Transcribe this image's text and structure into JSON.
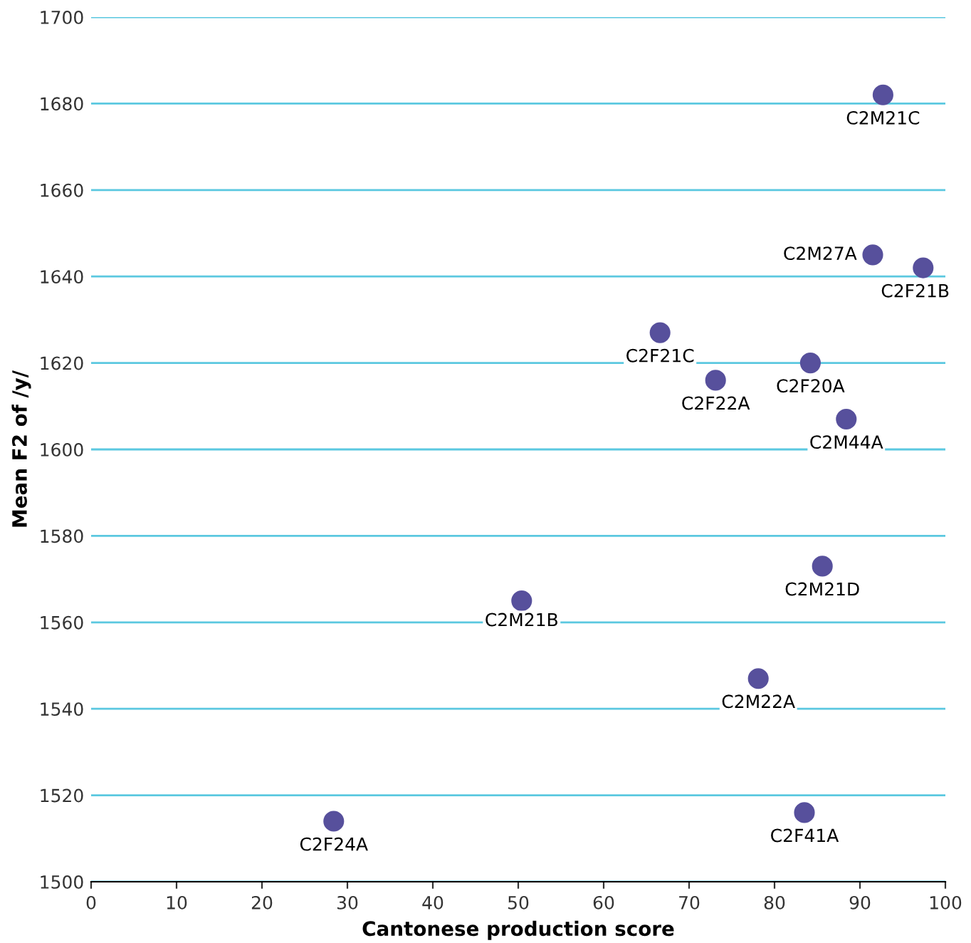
{
  "chart_data": {
    "type": "scatter",
    "xlabel": "Cantonese production score",
    "ylabel": "Mean F2 of /y/",
    "x": [
      92.7,
      91.5,
      97.4,
      66.6,
      84.2,
      73.1,
      88.4,
      85.6,
      50.4,
      78.1,
      28.4,
      83.5
    ],
    "series": [
      {
        "color": "#57509c",
        "values": [
          1682,
          1645,
          1642,
          1627,
          1620,
          1616,
          1607,
          1573,
          1565,
          1547,
          1514,
          1516
        ]
      }
    ],
    "annotations": [
      {
        "text": "C2M21C",
        "x": 92.7,
        "y": 1682
      },
      {
        "text": "C2M27A",
        "x": 91.5,
        "y": 1645
      },
      {
        "text": "C2F21B",
        "x": 97.4,
        "y": 1642
      },
      {
        "text": "C2F21C",
        "x": 66.6,
        "y": 1627
      },
      {
        "text": "C2F20A",
        "x": 84.2,
        "y": 1620
      },
      {
        "text": "C2F22A",
        "x": 73.1,
        "y": 1616
      },
      {
        "text": "C2M44A",
        "x": 88.4,
        "y": 1607
      },
      {
        "text": "C2M21D",
        "x": 85.6,
        "y": 1573
      },
      {
        "text": "C2M21B",
        "x": 50.4,
        "y": 1565
      },
      {
        "text": "C2M22A",
        "x": 78.1,
        "y": 1547
      },
      {
        "text": "C2F24A",
        "x": 28.4,
        "y": 1514
      },
      {
        "text": "C2F41A",
        "x": 83.5,
        "y": 1516
      }
    ],
    "xlim": [
      0,
      100
    ],
    "xticks": [
      0,
      10,
      20,
      30,
      40,
      50,
      60,
      70,
      80,
      90,
      100
    ],
    "ylim": [
      1500,
      1700
    ],
    "yticks": [
      1500,
      1520,
      1540,
      1560,
      1580,
      1600,
      1620,
      1640,
      1660,
      1680,
      1700
    ],
    "grid": "y",
    "marker": "circle"
  }
}
